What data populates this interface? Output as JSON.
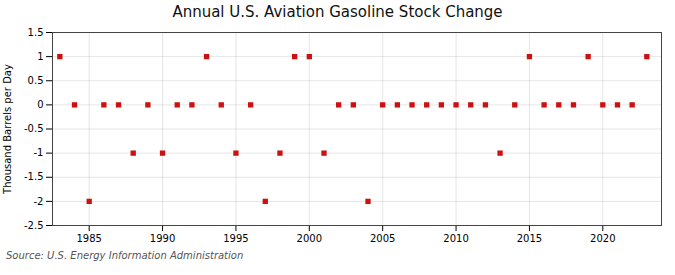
{
  "chart_data": {
    "type": "scatter",
    "title": "Annual U.S. Aviation Gasoline Stock Change",
    "ylabel": "Thousand Barrels per Day",
    "source": "Source: U.S. Energy Information Administration",
    "x": [
      1983,
      1984,
      1985,
      1986,
      1987,
      1988,
      1989,
      1990,
      1991,
      1992,
      1993,
      1994,
      1995,
      1996,
      1997,
      1998,
      1999,
      2000,
      2001,
      2002,
      2003,
      2004,
      2005,
      2006,
      2007,
      2008,
      2009,
      2010,
      2011,
      2012,
      2013,
      2014,
      2015,
      2016,
      2017,
      2018,
      2019,
      2020,
      2021,
      2022,
      2023
    ],
    "values": [
      1.0,
      0.0,
      -2.0,
      0.0,
      0.0,
      -1.0,
      0.0,
      -1.0,
      0.0,
      0.0,
      1.0,
      0.0,
      -1.0,
      0.0,
      -2.0,
      -1.0,
      1.0,
      1.0,
      -1.0,
      0.0,
      0.0,
      -2.0,
      0.0,
      0.0,
      0.0,
      0.0,
      0.0,
      0.0,
      0.0,
      0.0,
      -1.0,
      0.0,
      1.0,
      0.0,
      0.0,
      0.0,
      1.0,
      0.0,
      0.0,
      0.0,
      1.0
    ],
    "color": "#cc1111",
    "marker": "square",
    "xlim": [
      1982.5,
      2024
    ],
    "ylim": [
      -2.5,
      1.5
    ],
    "xticks": [
      1985,
      1990,
      1995,
      2000,
      2005,
      2010,
      2015,
      2020
    ],
    "yticks": [
      -2.5,
      -2,
      -1.5,
      -1,
      -0.5,
      0,
      0.5,
      1,
      1.5
    ],
    "grid": true
  }
}
